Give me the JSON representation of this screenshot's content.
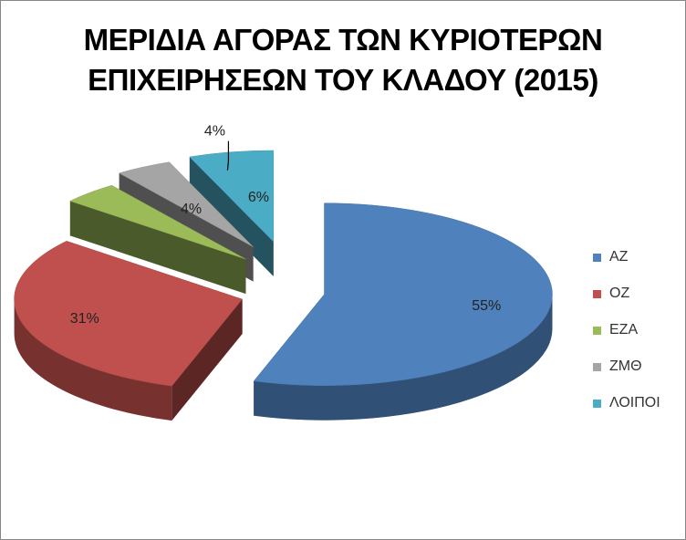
{
  "chart_data": {
    "type": "pie",
    "title_lines": [
      "ΜΕΡΙΔΙΑ ΑΓΟΡΑΣ ΤΩΝ ΚΥΡΙΟΤΕΡΩΝ",
      "ΕΠΙΧΕΙΡΗΣΕΩΝ ΤΟΥ ΚΛΑΔΟΥ (2015)"
    ],
    "style": "3d-exploded",
    "legend_position": "right",
    "slices": [
      {
        "name": "ΑΖ",
        "value": 55,
        "label": "55%",
        "color": "#4F81BD"
      },
      {
        "name": "ΟΖ",
        "value": 31,
        "label": "31%",
        "color": "#C0504D"
      },
      {
        "name": "ΕΖΑ",
        "value": 4,
        "label": "4%",
        "color": "#9BBB59"
      },
      {
        "name": "ΖΜΘ",
        "value": 4,
        "label": "4%",
        "color": "#A5A5A5"
      },
      {
        "name": "ΛΟΙΠΟΙ",
        "value": 6,
        "label": "6%",
        "color": "#4BACC6"
      }
    ]
  }
}
